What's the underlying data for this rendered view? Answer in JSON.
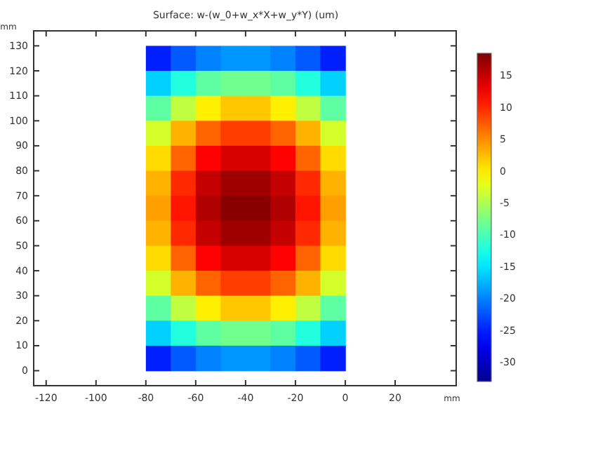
{
  "chart_data": {
    "type": "heatmap",
    "title": "Surface: w-(w_0+w_x*X+w_y*Y) (um)",
    "xlabel": "mm",
    "ylabel": "mm",
    "x": [
      -75,
      -65,
      -55,
      -45,
      -35,
      -25,
      -15,
      -5
    ],
    "y": [
      125,
      115,
      105,
      95,
      85,
      75,
      65,
      55,
      45,
      35,
      25,
      15,
      5
    ],
    "cells": [
      [
        -25,
        -22,
        -20,
        -19,
        -19,
        -20,
        -22,
        -25
      ],
      [
        -16,
        -12,
        -9,
        -8,
        -8,
        -9,
        -12,
        -16
      ],
      [
        -9,
        -4,
        0,
        2,
        2,
        0,
        -4,
        -9
      ],
      [
        -3,
        3,
        7,
        9,
        9,
        7,
        3,
        -3
      ],
      [
        1,
        7,
        12,
        14,
        14,
        12,
        7,
        1
      ],
      [
        3,
        10,
        15,
        17,
        17,
        15,
        10,
        3
      ],
      [
        4,
        11,
        16,
        18,
        18,
        16,
        11,
        4
      ],
      [
        3,
        10,
        15,
        17,
        17,
        15,
        10,
        3
      ],
      [
        1,
        7,
        12,
        14,
        14,
        12,
        7,
        1
      ],
      [
        -3,
        3,
        7,
        9,
        9,
        7,
        3,
        -3
      ],
      [
        -9,
        -4,
        0,
        2,
        2,
        0,
        -4,
        -9
      ],
      [
        -16,
        -12,
        -9,
        -8,
        -8,
        -9,
        -12,
        -16
      ],
      [
        -25,
        -22,
        -20,
        -19,
        -19,
        -20,
        -22,
        -25
      ]
    ],
    "xlim": [
      -125,
      44.5
    ],
    "ylim": [
      -6,
      136
    ],
    "xticks": [
      -120,
      -100,
      -80,
      -60,
      -40,
      -20,
      0,
      20
    ],
    "yticks": [
      0,
      10,
      20,
      30,
      40,
      50,
      60,
      70,
      80,
      90,
      100,
      110,
      120,
      130
    ],
    "clim": [
      -33,
      18.5
    ],
    "cticks": [
      -30,
      -25,
      -20,
      -15,
      -10,
      -5,
      0,
      5,
      10,
      15
    ]
  }
}
